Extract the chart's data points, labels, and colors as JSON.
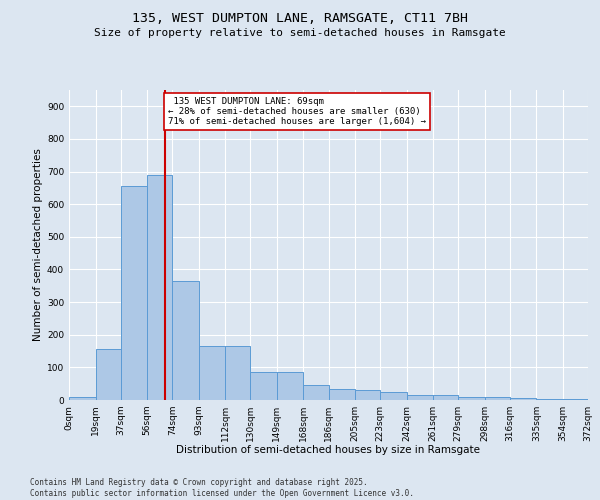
{
  "title_line1": "135, WEST DUMPTON LANE, RAMSGATE, CT11 7BH",
  "title_line2": "Size of property relative to semi-detached houses in Ramsgate",
  "xlabel": "Distribution of semi-detached houses by size in Ramsgate",
  "ylabel": "Number of semi-detached properties",
  "footnote": "Contains HM Land Registry data © Crown copyright and database right 2025.\nContains public sector information licensed under the Open Government Licence v3.0.",
  "bin_edges": [
    0,
    19,
    37,
    56,
    74,
    93,
    112,
    130,
    149,
    168,
    186,
    205,
    223,
    242,
    261,
    279,
    298,
    316,
    335,
    354,
    372
  ],
  "bin_labels": [
    "0sqm",
    "19sqm",
    "37sqm",
    "56sqm",
    "74sqm",
    "93sqm",
    "112sqm",
    "130sqm",
    "149sqm",
    "168sqm",
    "186sqm",
    "205sqm",
    "223sqm",
    "242sqm",
    "261sqm",
    "279sqm",
    "298sqm",
    "316sqm",
    "335sqm",
    "354sqm",
    "372sqm"
  ],
  "counts": [
    10,
    155,
    655,
    690,
    365,
    165,
    165,
    85,
    85,
    45,
    35,
    30,
    25,
    15,
    15,
    10,
    10,
    5,
    3,
    2
  ],
  "bar_color": "#adc8e6",
  "bar_edge_color": "#5b9bd5",
  "property_size": 69,
  "property_label": "135 WEST DUMPTON LANE: 69sqm",
  "pct_smaller": 28,
  "n_smaller": 630,
  "pct_larger": 71,
  "n_larger": 1604,
  "vline_color": "#cc0000",
  "annotation_box_color": "#cc0000",
  "ylim": [
    0,
    950
  ],
  "yticks": [
    0,
    100,
    200,
    300,
    400,
    500,
    600,
    700,
    800,
    900
  ],
  "background_color": "#dce6f1",
  "plot_bg_color": "#dce6f1",
  "grid_color": "#ffffff",
  "title_fontsize": 9.5,
  "subtitle_fontsize": 8.0,
  "axis_label_fontsize": 7.5,
  "tick_fontsize": 6.5,
  "annotation_fontsize": 6.5,
  "footnote_fontsize": 5.5
}
